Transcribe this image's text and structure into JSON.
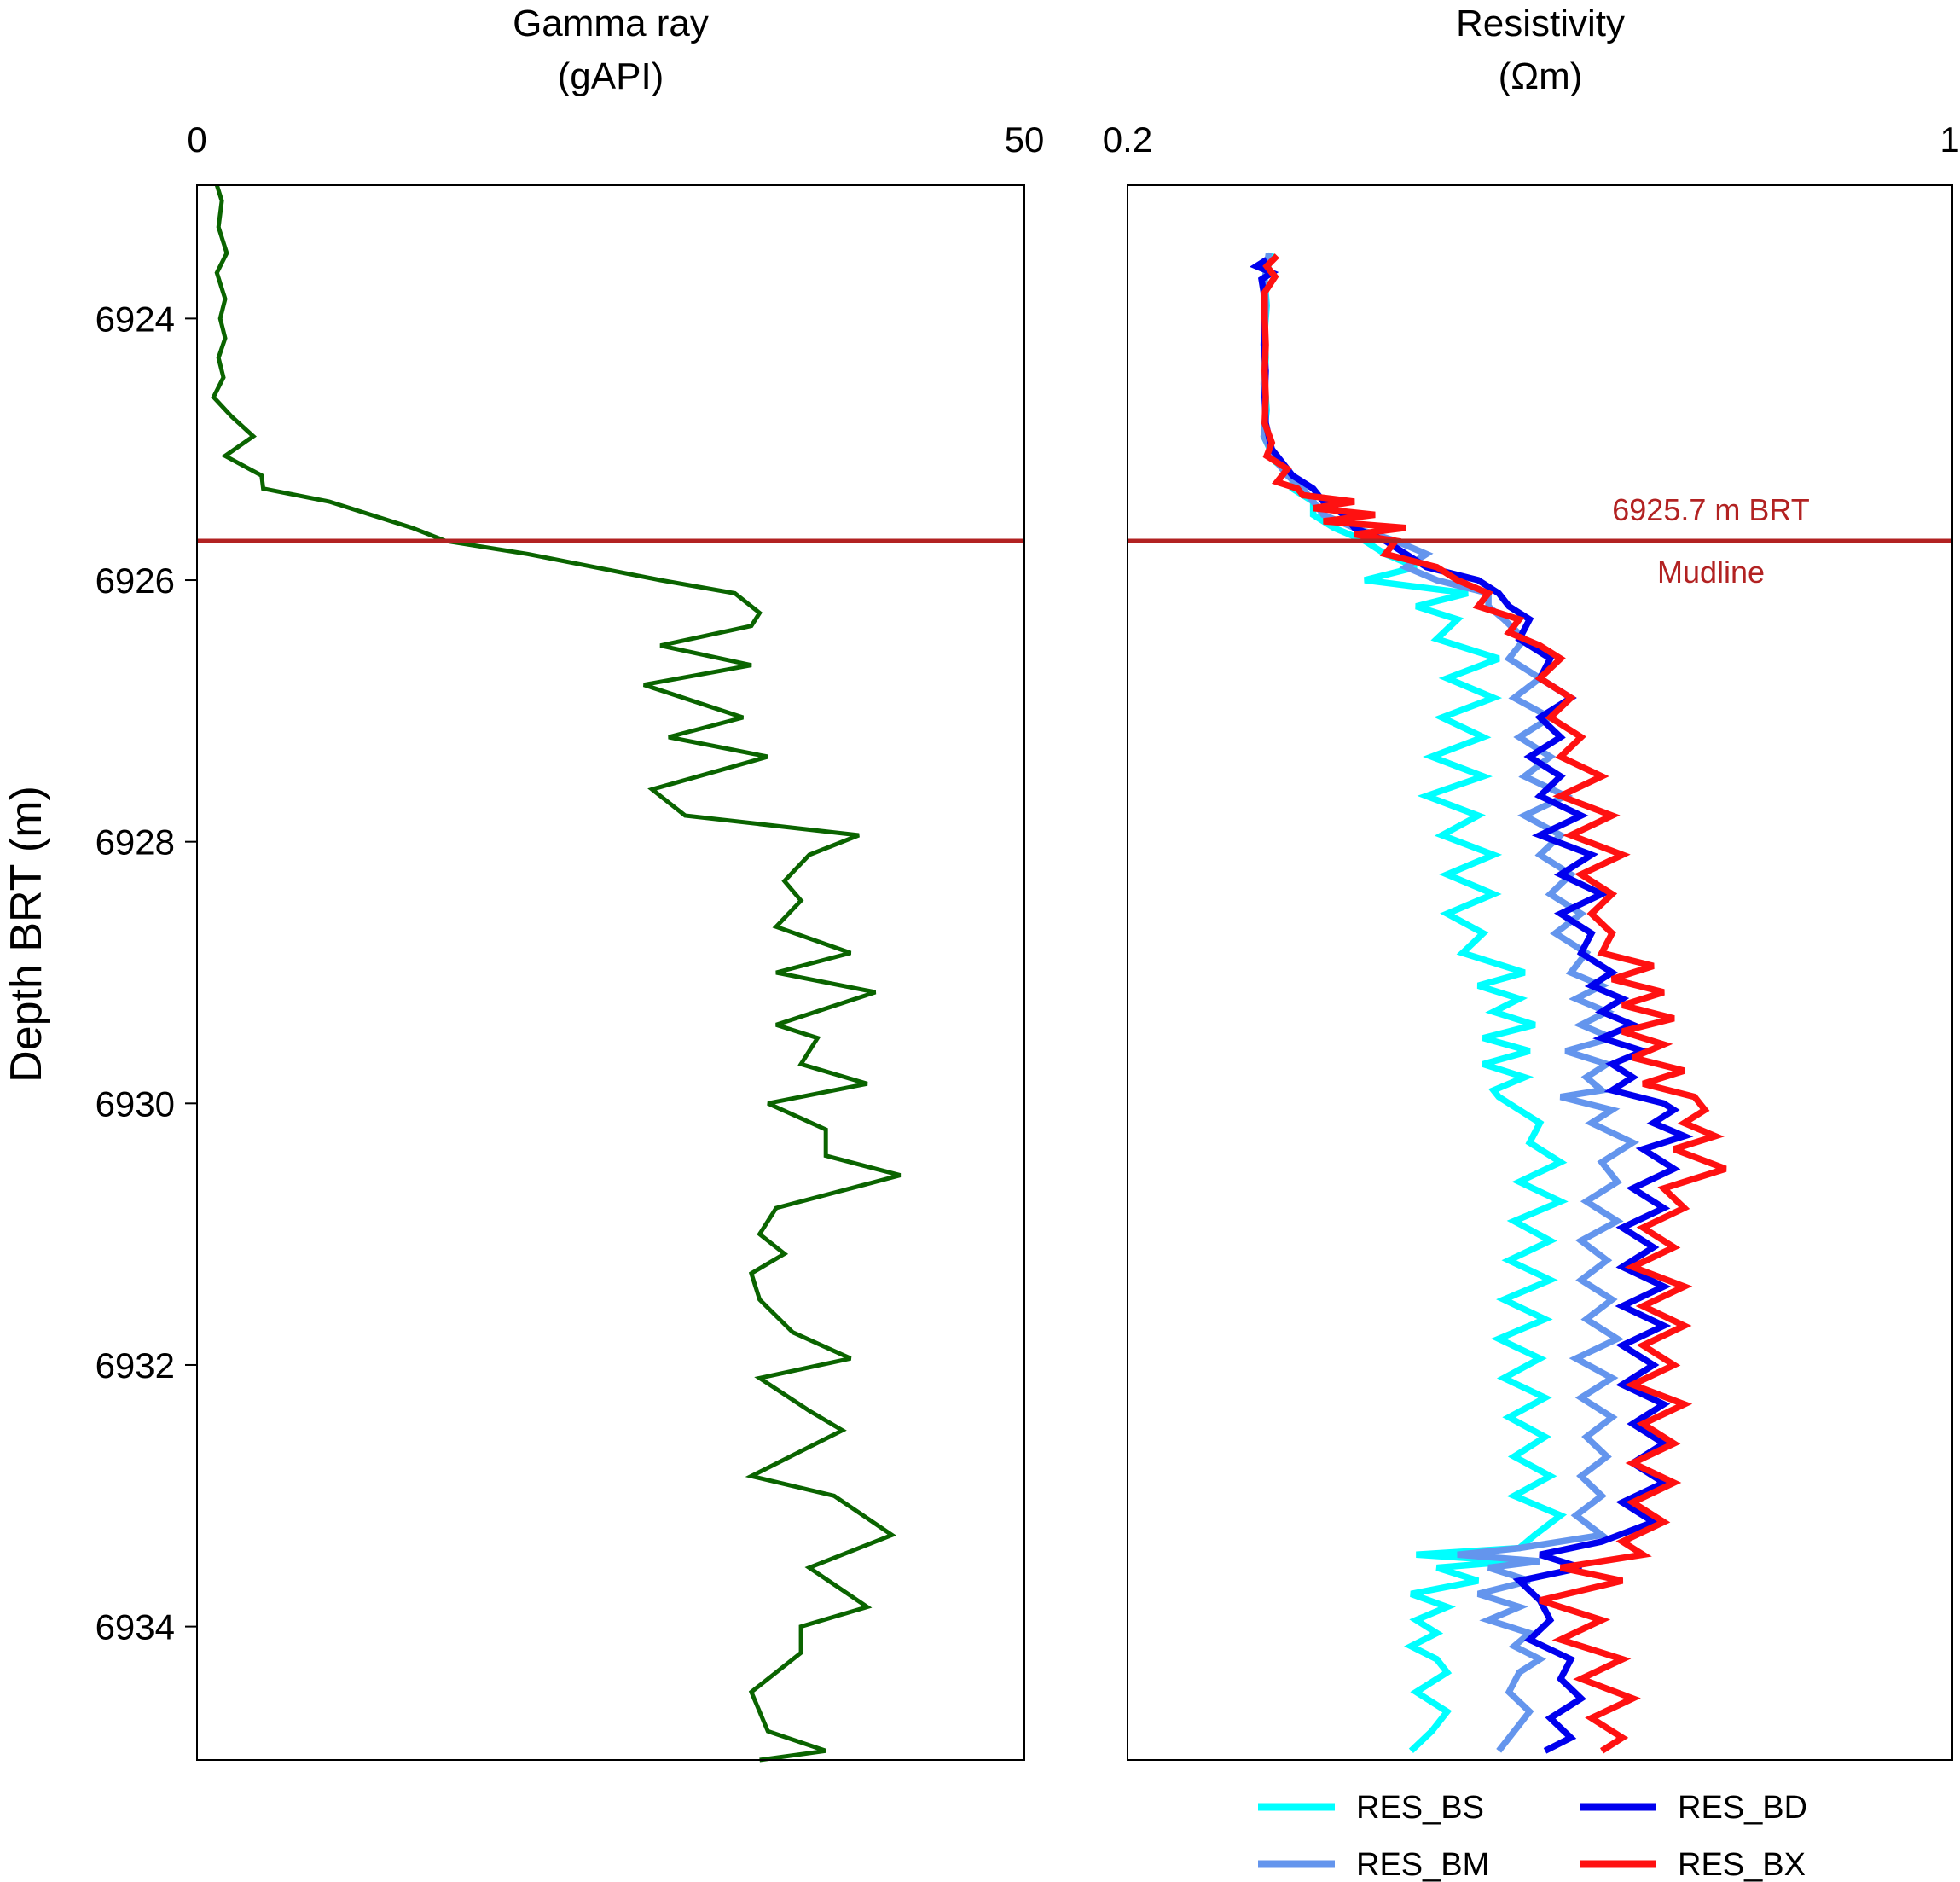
{
  "chart_data": [
    {
      "type": "line",
      "title": "Gamma ray",
      "units": "(gAPI)",
      "xlim": [
        0,
        50
      ],
      "x_tick_labels": [
        "0",
        "50"
      ],
      "ylabel": "Depth BRT (m)",
      "ylim": [
        6922.98,
        6935.02
      ],
      "y_ticks": [
        6924,
        6926,
        6928,
        6930,
        6932,
        6934
      ],
      "y_tick_labels": [
        "6924",
        "6926",
        "6928",
        "6930",
        "6932",
        "6934"
      ],
      "color": "#0a6400",
      "series": [
        {
          "name": "Gamma ray",
          "depth": [
            6922.98,
            6923.1,
            6923.3,
            6923.5,
            6923.65,
            6923.85,
            6924.0,
            6924.15,
            6924.3,
            6924.45,
            6924.6,
            6924.75,
            6924.9,
            6925.05,
            6925.2,
            6925.3,
            6925.4,
            6925.6,
            6925.7,
            6925.8,
            6925.9,
            6926.0,
            6926.1,
            6926.25,
            6926.35,
            6926.5,
            6926.65,
            6926.8,
            6927.05,
            6927.2,
            6927.35,
            6927.6,
            6927.8,
            6927.95,
            6928.1,
            6928.3,
            6928.45,
            6928.65,
            6928.85,
            6929.0,
            6929.15,
            6929.4,
            6929.5,
            6929.7,
            6929.85,
            6930.0,
            6930.2,
            6930.4,
            6930.55,
            6930.8,
            6931.0,
            6931.15,
            6931.3,
            6931.5,
            6931.75,
            6931.95,
            6932.1,
            6932.35,
            6932.5,
            6932.85,
            6933.0,
            6933.3,
            6933.55,
            6933.85,
            6934.0,
            6934.2,
            6934.5,
            6934.8,
            6934.95,
            6935.02
          ],
          "values": [
            1.2,
            1.5,
            1.3,
            1.8,
            1.2,
            1.7,
            1.4,
            1.7,
            1.3,
            1.6,
            1.0,
            2.1,
            3.4,
            1.7,
            3.9,
            4.0,
            8.0,
            13.0,
            15.0,
            20.0,
            24.0,
            28.0,
            32.5,
            34.0,
            33.5,
            28.0,
            33.5,
            27.0,
            33.0,
            28.5,
            34.5,
            27.5,
            29.5,
            40.0,
            37.0,
            35.5,
            36.5,
            35.0,
            39.5,
            35.0,
            41.0,
            35.0,
            37.5,
            36.5,
            40.5,
            34.5,
            38.0,
            38.0,
            42.5,
            35.0,
            34.0,
            35.5,
            33.5,
            34.0,
            36.0,
            39.5,
            34.0,
            37.0,
            39.0,
            33.5,
            38.5,
            42.0,
            37.0,
            40.5,
            36.5,
            36.5,
            33.5,
            34.5,
            38.0,
            34.0
          ]
        }
      ]
    },
    {
      "type": "line",
      "title": "Resistivity",
      "units": "(Ωm)",
      "xlim": [
        0.2,
        1
      ],
      "x_tick_labels": [
        "0.2",
        "1"
      ],
      "ylim": [
        6922.98,
        6935.02
      ],
      "annotation": {
        "depth": 6925.7,
        "label": "6925.7 m BRT",
        "sublabel": "Mudline",
        "color": "#b22222"
      },
      "legend": {
        "position": "bottom",
        "entries": [
          "RES_BS",
          "RES_BD",
          "RES_BM",
          "RES_BX"
        ]
      },
      "series": [
        {
          "name": "RES_BS",
          "color": "#00ffff",
          "lw": 7.5,
          "depth": [
            6923.5,
            6923.7,
            6923.9,
            6924.1,
            6924.3,
            6924.5,
            6924.7,
            6924.9,
            6925.1,
            6925.2,
            6925.3,
            6925.4,
            6925.5,
            6925.6,
            6925.7,
            6925.8,
            6925.9,
            6926.0,
            6926.1,
            6926.2,
            6926.3,
            6926.45,
            6926.6,
            6926.75,
            6926.9,
            6927.05,
            6927.2,
            6927.35,
            6927.5,
            6927.65,
            6927.8,
            6927.95,
            6928.1,
            6928.25,
            6928.4,
            6928.55,
            6928.7,
            6928.85,
            6929.0,
            6929.1,
            6929.2,
            6929.3,
            6929.4,
            6929.5,
            6929.6,
            6929.7,
            6929.8,
            6929.9,
            6929.95,
            6930.05,
            6930.15,
            6930.3,
            6930.45,
            6930.6,
            6930.75,
            6930.9,
            6931.05,
            6931.2,
            6931.35,
            6931.5,
            6931.65,
            6931.8,
            6931.95,
            6932.1,
            6932.25,
            6932.4,
            6932.55,
            6932.7,
            6932.85,
            6933.0,
            6933.15,
            6933.3,
            6933.4,
            6933.45,
            6933.5,
            6933.55,
            6933.65,
            6933.75,
            6933.85,
            6933.95,
            6934.05,
            6934.15,
            6934.25,
            6934.35,
            6934.5,
            6934.65,
            6934.8,
            6934.95
          ],
          "values": [
            0.34,
            0.333,
            0.335,
            0.333,
            0.334,
            0.333,
            0.335,
            0.332,
            0.344,
            0.36,
            0.36,
            0.38,
            0.38,
            0.4,
            0.43,
            0.45,
            0.48,
            0.43,
            0.53,
            0.48,
            0.52,
            0.5,
            0.56,
            0.51,
            0.555,
            0.505,
            0.545,
            0.495,
            0.545,
            0.49,
            0.54,
            0.505,
            0.555,
            0.51,
            0.555,
            0.51,
            0.545,
            0.525,
            0.585,
            0.54,
            0.58,
            0.555,
            0.595,
            0.545,
            0.59,
            0.545,
            0.585,
            0.555,
            0.56,
            0.58,
            0.6,
            0.59,
            0.62,
            0.58,
            0.62,
            0.575,
            0.61,
            0.57,
            0.61,
            0.565,
            0.605,
            0.56,
            0.6,
            0.565,
            0.605,
            0.57,
            0.605,
            0.575,
            0.61,
            0.575,
            0.62,
            0.595,
            0.58,
            0.48,
            0.575,
            0.5,
            0.54,
            0.475,
            0.51,
            0.48,
            0.5,
            0.475,
            0.5,
            0.51,
            0.48,
            0.51,
            0.495,
            0.475
          ]
        },
        {
          "name": "RES_BM",
          "color": "#6495ed",
          "lw": 7.5,
          "depth": [
            6923.5,
            6923.7,
            6923.9,
            6924.1,
            6924.3,
            6924.5,
            6924.7,
            6924.9,
            6925.1,
            6925.2,
            6925.3,
            6925.4,
            6925.5,
            6925.6,
            6925.7,
            6925.8,
            6925.9,
            6926.0,
            6926.1,
            6926.2,
            6926.3,
            6926.45,
            6926.6,
            6926.75,
            6926.9,
            6927.05,
            6927.2,
            6927.35,
            6927.5,
            6927.65,
            6927.8,
            6927.95,
            6928.1,
            6928.25,
            6928.4,
            6928.55,
            6928.7,
            6928.85,
            6929.0,
            6929.1,
            6929.2,
            6929.3,
            6929.4,
            6929.5,
            6929.6,
            6929.7,
            6929.8,
            6929.9,
            6929.95,
            6930.05,
            6930.15,
            6930.3,
            6930.45,
            6930.6,
            6930.75,
            6930.9,
            6931.05,
            6931.2,
            6931.35,
            6931.5,
            6931.65,
            6931.8,
            6931.95,
            6932.1,
            6932.25,
            6932.4,
            6932.55,
            6932.7,
            6932.85,
            6933.0,
            6933.15,
            6933.3,
            6933.4,
            6933.45,
            6933.5,
            6933.55,
            6933.65,
            6933.75,
            6933.85,
            6933.95,
            6934.05,
            6934.15,
            6934.25,
            6934.35,
            6934.5,
            6934.65,
            6934.8,
            6934.95
          ],
          "values": [
            0.337,
            0.333,
            0.334,
            0.333,
            0.333,
            0.332,
            0.334,
            0.332,
            0.345,
            0.355,
            0.37,
            0.38,
            0.39,
            0.42,
            0.46,
            0.49,
            0.47,
            0.5,
            0.55,
            0.55,
            0.565,
            0.585,
            0.57,
            0.6,
            0.575,
            0.61,
            0.58,
            0.61,
            0.585,
            0.625,
            0.585,
            0.62,
            0.6,
            0.63,
            0.61,
            0.64,
            0.615,
            0.645,
            0.63,
            0.66,
            0.635,
            0.665,
            0.64,
            0.67,
            0.625,
            0.665,
            0.645,
            0.66,
            0.62,
            0.67,
            0.65,
            0.69,
            0.66,
            0.675,
            0.645,
            0.675,
            0.64,
            0.665,
            0.64,
            0.67,
            0.645,
            0.675,
            0.635,
            0.67,
            0.64,
            0.67,
            0.645,
            0.665,
            0.64,
            0.66,
            0.635,
            0.66,
            0.58,
            0.52,
            0.6,
            0.55,
            0.59,
            0.54,
            0.58,
            0.55,
            0.59,
            0.575,
            0.6,
            0.58,
            0.57,
            0.59,
            0.575,
            0.56
          ]
        },
        {
          "name": "RES_BD",
          "color": "#0000ee",
          "lw": 7.5,
          "depth": [
            6923.55,
            6923.6,
            6923.65,
            6923.7,
            6923.8,
            6924.0,
            6924.2,
            6924.4,
            6924.6,
            6924.8,
            6925.0,
            6925.1,
            6925.2,
            6925.3,
            6925.4,
            6925.5,
            6925.6,
            6925.7,
            6925.8,
            6925.9,
            6926.0,
            6926.1,
            6926.2,
            6926.3,
            6926.45,
            6926.6,
            6926.75,
            6926.9,
            6927.05,
            6927.2,
            6927.35,
            6927.5,
            6927.65,
            6927.8,
            6927.95,
            6928.1,
            6928.25,
            6928.4,
            6928.55,
            6928.7,
            6928.85,
            6929.0,
            6929.1,
            6929.2,
            6929.3,
            6929.4,
            6929.5,
            6929.6,
            6929.7,
            6929.8,
            6929.9,
            6930.0,
            6930.05,
            6930.15,
            6930.25,
            6930.35,
            6930.5,
            6930.65,
            6930.8,
            6930.95,
            6931.1,
            6931.25,
            6931.4,
            6931.55,
            6931.7,
            6931.85,
            6932.0,
            6932.15,
            6932.3,
            6932.45,
            6932.6,
            6932.75,
            6932.9,
            6933.05,
            6933.2,
            6933.35,
            6933.45,
            6933.55,
            6933.65,
            6933.8,
            6933.95,
            6934.1,
            6934.25,
            6934.4,
            6934.55,
            6934.7,
            6934.85,
            6934.95
          ],
          "values": [
            0.335,
            0.325,
            0.34,
            0.33,
            0.332,
            0.333,
            0.332,
            0.334,
            0.333,
            0.334,
            0.34,
            0.35,
            0.36,
            0.38,
            0.39,
            0.41,
            0.42,
            0.45,
            0.47,
            0.49,
            0.54,
            0.56,
            0.57,
            0.59,
            0.58,
            0.61,
            0.6,
            0.63,
            0.6,
            0.62,
            0.59,
            0.62,
            0.6,
            0.64,
            0.6,
            0.65,
            0.62,
            0.66,
            0.62,
            0.65,
            0.64,
            0.67,
            0.65,
            0.68,
            0.66,
            0.69,
            0.66,
            0.7,
            0.67,
            0.69,
            0.67,
            0.72,
            0.73,
            0.71,
            0.74,
            0.7,
            0.73,
            0.69,
            0.72,
            0.68,
            0.71,
            0.68,
            0.72,
            0.68,
            0.72,
            0.68,
            0.71,
            0.68,
            0.72,
            0.69,
            0.72,
            0.69,
            0.72,
            0.68,
            0.71,
            0.66,
            0.6,
            0.64,
            0.58,
            0.6,
            0.61,
            0.59,
            0.63,
            0.62,
            0.64,
            0.61,
            0.63,
            0.605
          ]
        },
        {
          "name": "RES_BX",
          "color": "#ff1111",
          "lw": 7.5,
          "depth": [
            6923.52,
            6923.6,
            6923.68,
            6923.8,
            6924.0,
            6924.2,
            6924.4,
            6924.6,
            6924.8,
            6924.95,
            6925.05,
            6925.15,
            6925.25,
            6925.3,
            6925.35,
            6925.4,
            6925.45,
            6925.5,
            6925.55,
            6925.6,
            6925.65,
            6925.7,
            6925.8,
            6925.9,
            6926.0,
            6926.1,
            6926.2,
            6926.3,
            6926.4,
            6926.5,
            6926.6,
            6926.75,
            6926.9,
            6927.05,
            6927.2,
            6927.35,
            6927.5,
            6927.65,
            6927.8,
            6927.95,
            6928.1,
            6928.25,
            6928.4,
            6928.55,
            6928.7,
            6928.85,
            6928.95,
            6929.05,
            6929.15,
            6929.25,
            6929.35,
            6929.45,
            6929.55,
            6929.65,
            6929.75,
            6929.85,
            6929.95,
            6930.05,
            6930.15,
            6930.25,
            6930.35,
            6930.5,
            6930.65,
            6930.8,
            6930.95,
            6931.1,
            6931.25,
            6931.4,
            6931.55,
            6931.7,
            6931.85,
            6932.0,
            6932.15,
            6932.3,
            6932.45,
            6932.6,
            6932.75,
            6932.9,
            6933.05,
            6933.2,
            6933.35,
            6933.45,
            6933.55,
            6933.65,
            6933.8,
            6933.95,
            6934.1,
            6934.25,
            6934.4,
            6934.55,
            6934.7,
            6934.85,
            6934.95
          ],
          "values": [
            0.345,
            0.335,
            0.343,
            0.333,
            0.333,
            0.334,
            0.333,
            0.334,
            0.333,
            0.34,
            0.335,
            0.355,
            0.345,
            0.365,
            0.37,
            0.42,
            0.38,
            0.44,
            0.39,
            0.47,
            0.42,
            0.46,
            0.45,
            0.5,
            0.52,
            0.55,
            0.54,
            0.58,
            0.57,
            0.6,
            0.62,
            0.6,
            0.63,
            0.61,
            0.64,
            0.62,
            0.66,
            0.62,
            0.67,
            0.63,
            0.68,
            0.64,
            0.67,
            0.65,
            0.67,
            0.66,
            0.71,
            0.67,
            0.72,
            0.68,
            0.73,
            0.68,
            0.72,
            0.69,
            0.74,
            0.7,
            0.75,
            0.76,
            0.74,
            0.77,
            0.73,
            0.78,
            0.72,
            0.74,
            0.7,
            0.73,
            0.69,
            0.74,
            0.7,
            0.74,
            0.7,
            0.73,
            0.69,
            0.74,
            0.7,
            0.73,
            0.69,
            0.73,
            0.69,
            0.72,
            0.68,
            0.7,
            0.62,
            0.68,
            0.6,
            0.66,
            0.62,
            0.68,
            0.64,
            0.69,
            0.65,
            0.68,
            0.66
          ]
        }
      ]
    }
  ]
}
